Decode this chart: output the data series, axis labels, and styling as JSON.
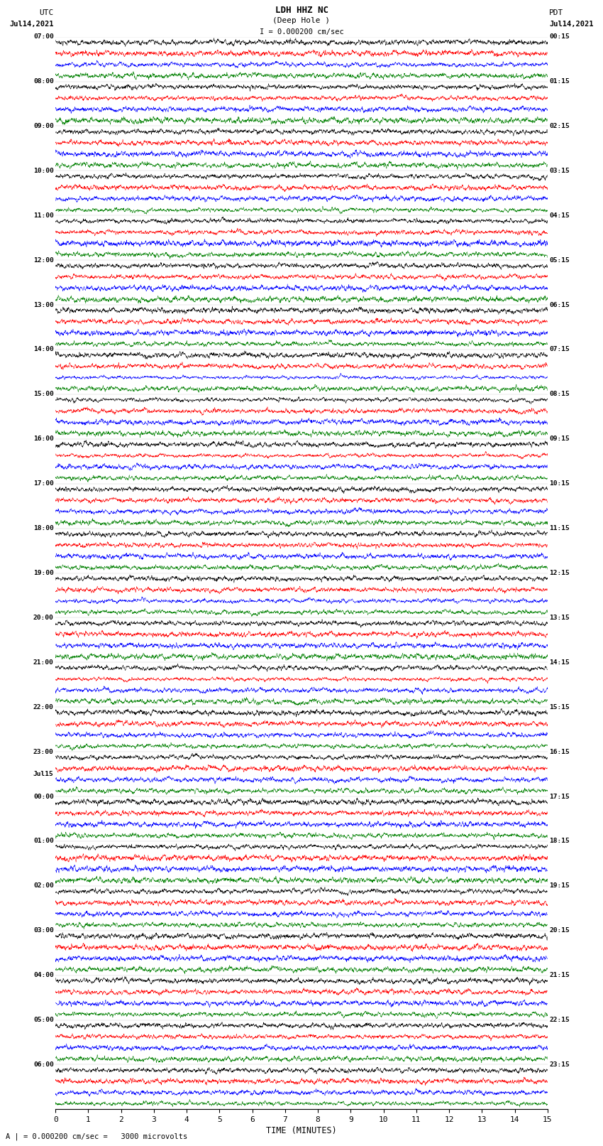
{
  "title_line1": "LDH HHZ NC",
  "title_line2": "(Deep Hole )",
  "scale_label": "I = 0.000200 cm/sec",
  "left_label": "UTC",
  "right_label": "PDT",
  "date_left": "Jul14,2021",
  "date_right": "Jul14,2021",
  "date_left2": "Jul15",
  "footer": "A | = 0.000200 cm/sec =   3000 microvolts",
  "xlabel": "TIME (MINUTES)",
  "xlim": [
    0,
    15
  ],
  "xticks": [
    0,
    1,
    2,
    3,
    4,
    5,
    6,
    7,
    8,
    9,
    10,
    11,
    12,
    13,
    14,
    15
  ],
  "colors": [
    "black",
    "red",
    "blue",
    "green"
  ],
  "fig_width": 8.5,
  "fig_height": 16.13,
  "dpi": 100,
  "n_rows": 96,
  "background": "white",
  "left_times_utc": [
    "07:00",
    "08:00",
    "09:00",
    "10:00",
    "11:00",
    "12:00",
    "13:00",
    "14:00",
    "15:00",
    "16:00",
    "17:00",
    "18:00",
    "19:00",
    "20:00",
    "21:00",
    "22:00",
    "23:00",
    "00:00",
    "01:00",
    "02:00",
    "03:00",
    "04:00",
    "05:00",
    "06:00"
  ],
  "right_times_pdt": [
    "00:15",
    "01:15",
    "02:15",
    "03:15",
    "04:15",
    "05:15",
    "06:15",
    "07:15",
    "08:15",
    "09:15",
    "10:15",
    "11:15",
    "12:15",
    "13:15",
    "14:15",
    "15:15",
    "16:15",
    "17:15",
    "18:15",
    "19:15",
    "20:15",
    "21:15",
    "22:15",
    "23:15"
  ],
  "jul15_hour_index": 17
}
